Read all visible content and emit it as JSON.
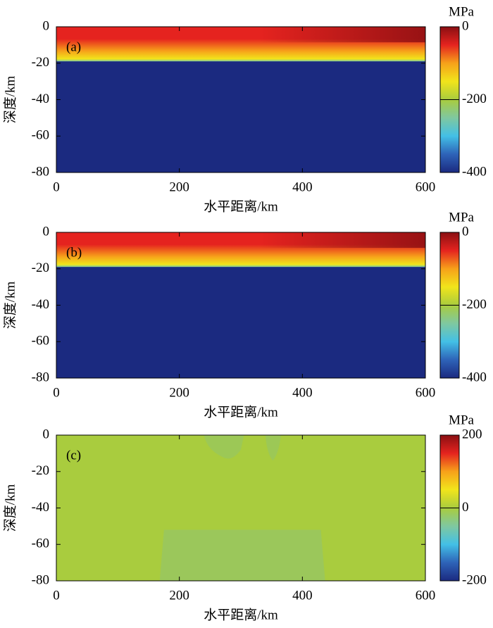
{
  "chart_data": [
    {
      "type": "heatmap",
      "panel": "(a)",
      "x_label": "水平距离/km",
      "y_label": "深度/km",
      "xlim": [
        0,
        600
      ],
      "ylim": [
        -80,
        0
      ],
      "xticks": [
        0,
        200,
        400,
        600
      ],
      "yticks": [
        0,
        -20,
        -40,
        -60,
        -80
      ],
      "colorbar": {
        "label": "MPa",
        "lim": [
          -400,
          0
        ],
        "ticks": [
          -400,
          -200,
          0
        ]
      },
      "colormap": [
        "#1b2a80",
        "#2e63b8",
        "#43c0e6",
        "#7fc8a0",
        "#a9cc3e",
        "#f1e51b",
        "#f7a11a",
        "#e5231f",
        "#8a0f12"
      ]
    },
    {
      "type": "heatmap",
      "panel": "(b)",
      "x_label": "水平距离/km",
      "y_label": "深度/km",
      "xlim": [
        0,
        600
      ],
      "ylim": [
        -80,
        0
      ],
      "xticks": [
        0,
        200,
        400,
        600
      ],
      "yticks": [
        0,
        -20,
        -40,
        -60,
        -80
      ],
      "colorbar": {
        "label": "MPa",
        "lim": [
          -400,
          0
        ],
        "ticks": [
          -400,
          -200,
          0
        ]
      },
      "colormap": [
        "#1b2a80",
        "#2e63b8",
        "#43c0e6",
        "#7fc8a0",
        "#a9cc3e",
        "#f1e51b",
        "#f7a11a",
        "#e5231f",
        "#8a0f12"
      ]
    },
    {
      "type": "heatmap",
      "panel": "(c)",
      "x_label": "水平距离/km",
      "y_label": "深度/km",
      "xlim": [
        0,
        600
      ],
      "ylim": [
        -80,
        0
      ],
      "xticks": [
        0,
        200,
        400,
        600
      ],
      "yticks": [
        0,
        -20,
        -40,
        -60,
        -80
      ],
      "colorbar": {
        "label": "MPa",
        "lim": [
          -200,
          200
        ],
        "ticks": [
          -200,
          0,
          200
        ]
      },
      "colormap": [
        "#1b2a80",
        "#2e63b8",
        "#43c0e6",
        "#7fc8a0",
        "#a9cc3e",
        "#f1e51b",
        "#f7a11a",
        "#e5231f",
        "#8a0f12"
      ]
    }
  ]
}
